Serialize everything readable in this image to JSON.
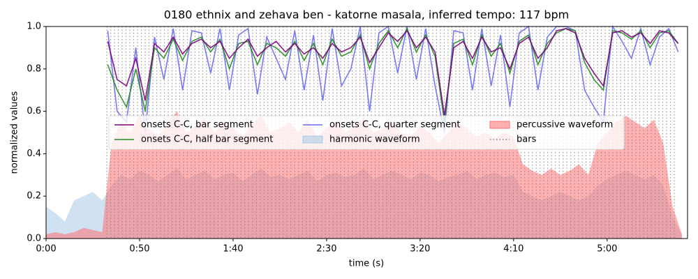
{
  "chart_data": {
    "type": "line",
    "title": "0180 ethnix and zehava ben - katorne masala, inferred tempo: 117 bpm",
    "xlabel": "time (s)",
    "ylabel": "normalized values",
    "xlim": [
      0,
      343
    ],
    "ylim": [
      0,
      1
    ],
    "xticks": [
      {
        "value": 0,
        "label": "0:00"
      },
      {
        "value": 50,
        "label": "0:50"
      },
      {
        "value": 100,
        "label": "1:40"
      },
      {
        "value": 150,
        "label": "2:30"
      },
      {
        "value": 200,
        "label": "3:20"
      },
      {
        "value": 250,
        "label": "4:10"
      },
      {
        "value": 300,
        "label": "5:00"
      }
    ],
    "yticks": [
      {
        "value": 0,
        "label": "0.0"
      },
      0.2,
      0.4,
      0.6,
      0.8,
      {
        "value": 1,
        "label": "1.0"
      }
    ],
    "legend": "center",
    "series": [
      {
        "name": "onsets C-C, bar segment",
        "style": "line",
        "color": "#800080",
        "x": [
          33,
          38,
          43,
          48,
          53,
          58,
          63,
          68,
          73,
          78,
          83,
          88,
          93,
          98,
          103,
          108,
          113,
          118,
          123,
          128,
          133,
          138,
          143,
          148,
          153,
          158,
          163,
          168,
          173,
          178,
          183,
          188,
          193,
          198,
          203,
          208,
          213,
          218,
          223,
          228,
          233,
          238,
          243,
          248,
          253,
          258,
          263,
          268,
          273,
          278,
          283,
          288,
          293,
          298,
          303,
          308,
          313,
          318,
          323,
          328,
          333,
          338
        ],
        "values": [
          0.93,
          0.75,
          0.72,
          0.85,
          0.65,
          0.92,
          0.88,
          0.95,
          0.87,
          0.92,
          0.94,
          0.9,
          0.93,
          0.85,
          0.9,
          0.94,
          0.86,
          0.9,
          0.93,
          0.88,
          0.92,
          0.87,
          0.9,
          0.85,
          0.92,
          0.88,
          0.9,
          0.95,
          0.83,
          0.9,
          0.97,
          0.93,
          0.98,
          0.9,
          0.95,
          0.88,
          0.58,
          0.9,
          0.93,
          0.85,
          0.95,
          0.88,
          0.9,
          0.8,
          0.92,
          0.95,
          0.85,
          0.9,
          0.98,
          0.99,
          0.97,
          0.85,
          0.78,
          0.72,
          0.97,
          0.98,
          0.95,
          0.97,
          0.92,
          0.98,
          0.97,
          0.92
        ]
      },
      {
        "name": "onsets C-C, half bar segment",
        "style": "line",
        "color": "#228b22",
        "x": [
          33,
          38,
          43,
          48,
          53,
          58,
          63,
          68,
          73,
          78,
          83,
          88,
          93,
          98,
          103,
          108,
          113,
          118,
          123,
          128,
          133,
          138,
          143,
          148,
          153,
          158,
          163,
          168,
          173,
          178,
          183,
          188,
          193,
          198,
          203,
          208,
          213,
          218,
          223,
          228,
          233,
          238,
          243,
          248,
          253,
          258,
          263,
          268,
          273,
          278,
          283,
          288,
          293,
          298,
          303,
          308,
          313,
          318,
          323,
          328,
          333,
          338
        ],
        "values": [
          0.82,
          0.7,
          0.62,
          0.8,
          0.6,
          0.9,
          0.85,
          0.94,
          0.84,
          0.93,
          0.95,
          0.88,
          0.94,
          0.8,
          0.92,
          0.93,
          0.82,
          0.92,
          0.9,
          0.86,
          0.93,
          0.84,
          0.92,
          0.82,
          0.94,
          0.86,
          0.88,
          0.96,
          0.8,
          0.92,
          0.98,
          0.9,
          0.99,
          0.88,
          0.96,
          0.86,
          0.55,
          0.92,
          0.94,
          0.82,
          0.96,
          0.86,
          0.92,
          0.78,
          0.93,
          0.96,
          0.82,
          0.92,
          0.97,
          0.99,
          0.98,
          0.83,
          0.75,
          0.7,
          0.98,
          0.97,
          0.94,
          0.98,
          0.9,
          0.97,
          0.98,
          0.92
        ]
      },
      {
        "name": "onsets C-C, quarter segment",
        "style": "line",
        "color": "#6a6af5",
        "x": [
          33,
          38,
          43,
          48,
          53,
          58,
          63,
          68,
          73,
          78,
          83,
          88,
          93,
          98,
          103,
          108,
          113,
          118,
          123,
          128,
          133,
          138,
          143,
          148,
          153,
          158,
          163,
          168,
          173,
          178,
          183,
          188,
          193,
          198,
          203,
          208,
          213,
          218,
          223,
          228,
          233,
          238,
          243,
          248,
          253,
          258,
          263,
          268,
          273,
          278,
          283,
          288,
          293,
          298,
          303,
          308,
          313,
          318,
          323,
          328,
          333,
          338
        ],
        "values": [
          0.98,
          0.6,
          0.55,
          0.9,
          0.5,
          0.95,
          0.75,
          0.99,
          0.7,
          0.98,
          0.97,
          0.78,
          0.99,
          0.7,
          0.96,
          0.99,
          0.68,
          0.95,
          0.85,
          0.75,
          0.98,
          0.7,
          0.96,
          0.65,
          0.99,
          0.72,
          0.8,
          1.0,
          0.6,
          0.97,
          1.0,
          0.78,
          1.0,
          0.75,
          0.99,
          0.72,
          0.5,
          0.98,
          0.97,
          0.7,
          0.99,
          0.72,
          0.96,
          0.62,
          0.97,
          1.0,
          0.7,
          0.95,
          1.0,
          1.0,
          0.98,
          0.7,
          0.62,
          0.55,
          1.0,
          0.93,
          0.85,
          0.99,
          0.82,
          0.95,
          0.99,
          0.88
        ]
      },
      {
        "name": "harmonic waveform",
        "style": "area",
        "color": "#a9cbe6",
        "x": [
          0,
          5,
          10,
          15,
          20,
          25,
          30,
          35,
          40,
          45,
          50,
          55,
          60,
          65,
          70,
          75,
          80,
          85,
          90,
          95,
          100,
          105,
          110,
          115,
          120,
          125,
          130,
          135,
          140,
          145,
          150,
          155,
          160,
          165,
          170,
          175,
          180,
          185,
          190,
          195,
          200,
          205,
          210,
          215,
          220,
          225,
          230,
          235,
          240,
          245,
          250,
          255,
          260,
          265,
          270,
          275,
          280,
          285,
          290,
          295,
          300,
          305,
          310,
          315,
          320,
          325,
          330,
          335,
          340
        ],
        "values": [
          0.15,
          0.12,
          0.08,
          0.18,
          0.2,
          0.22,
          0.18,
          0.25,
          0.3,
          0.28,
          0.32,
          0.3,
          0.27,
          0.3,
          0.33,
          0.28,
          0.3,
          0.32,
          0.28,
          0.3,
          0.31,
          0.27,
          0.3,
          0.33,
          0.29,
          0.3,
          0.28,
          0.3,
          0.32,
          0.27,
          0.3,
          0.31,
          0.29,
          0.3,
          0.33,
          0.28,
          0.3,
          0.32,
          0.3,
          0.28,
          0.31,
          0.3,
          0.27,
          0.29,
          0.3,
          0.32,
          0.28,
          0.3,
          0.31,
          0.29,
          0.3,
          0.22,
          0.2,
          0.18,
          0.2,
          0.22,
          0.2,
          0.18,
          0.2,
          0.25,
          0.28,
          0.3,
          0.32,
          0.3,
          0.28,
          0.3,
          0.25,
          0.1,
          0.02
        ]
      },
      {
        "name": "percussive waveform",
        "style": "area",
        "color": "#ff7070",
        "x": [
          0,
          5,
          10,
          15,
          20,
          25,
          30,
          35,
          40,
          45,
          50,
          55,
          60,
          65,
          70,
          75,
          80,
          85,
          90,
          95,
          100,
          105,
          110,
          115,
          120,
          125,
          130,
          135,
          140,
          145,
          150,
          155,
          160,
          165,
          170,
          175,
          180,
          185,
          190,
          195,
          200,
          205,
          210,
          215,
          220,
          225,
          230,
          235,
          240,
          245,
          250,
          255,
          260,
          265,
          270,
          275,
          280,
          285,
          290,
          295,
          300,
          305,
          310,
          315,
          320,
          325,
          330,
          335,
          340
        ],
        "values": [
          0.02,
          0.03,
          0.02,
          0.03,
          0.05,
          0.04,
          0.03,
          0.45,
          0.55,
          0.5,
          0.58,
          0.52,
          0.48,
          0.55,
          0.6,
          0.5,
          0.53,
          0.57,
          0.5,
          0.55,
          0.52,
          0.48,
          0.54,
          0.58,
          0.5,
          0.52,
          0.55,
          0.5,
          0.56,
          0.48,
          0.52,
          0.55,
          0.5,
          0.53,
          0.57,
          0.5,
          0.52,
          0.55,
          0.5,
          0.48,
          0.53,
          0.5,
          0.45,
          0.5,
          0.55,
          0.52,
          0.48,
          0.5,
          0.47,
          0.5,
          0.48,
          0.35,
          0.32,
          0.3,
          0.33,
          0.3,
          0.32,
          0.35,
          0.3,
          0.45,
          0.5,
          0.55,
          0.58,
          0.55,
          0.52,
          0.56,
          0.45,
          0.15,
          0.02
        ]
      },
      {
        "name": "bars",
        "style": "vlines",
        "color": "#808080",
        "x": [
          32.5,
          34.55,
          36.6,
          38.65,
          40.7,
          42.75,
          44.8,
          46.85,
          48.9,
          50.95,
          53,
          55.05,
          57.1,
          59.15,
          61.2,
          63.25,
          65.3,
          67.35,
          69.4,
          71.45,
          73.5,
          75.55,
          77.6,
          79.65,
          81.7,
          83.75,
          85.8,
          87.85,
          89.9,
          91.95,
          94,
          96.05,
          98.1,
          100.15,
          102.2,
          104.25,
          106.3,
          108.35,
          110.4,
          112.45,
          114.5,
          116.55,
          118.6,
          120.65,
          122.7,
          124.75,
          126.8,
          128.85,
          130.9,
          132.95,
          135,
          137.05,
          139.1,
          141.15,
          143.2,
          145.25,
          147.3,
          149.35,
          151.4,
          153.45,
          155.5,
          157.55,
          159.6,
          161.65,
          163.7,
          165.75,
          167.8,
          169.85,
          171.9,
          173.95,
          176,
          178.05,
          180.1,
          182.15,
          184.2,
          186.25,
          188.3,
          190.35,
          192.4,
          194.45,
          196.5,
          198.55,
          200.6,
          202.65,
          204.7,
          206.75,
          208.8,
          210.85,
          212.9,
          214.95,
          217,
          219.05,
          221.1,
          223.15,
          225.2,
          227.25,
          229.3,
          231.35,
          233.4,
          235.45,
          237.5,
          239.55,
          241.6,
          243.65,
          245.7,
          247.75,
          249.8,
          251.85,
          253.9,
          255.95,
          258,
          260.05,
          262.1,
          264.15,
          266.2,
          268.25,
          270.3,
          272.35,
          274.4,
          276.45,
          278.5,
          280.55,
          282.6,
          284.65,
          286.7,
          288.75,
          290.8,
          292.85,
          294.9,
          296.95,
          299,
          301.05,
          303.1,
          305.15,
          307.2,
          309.25,
          311.3,
          313.35,
          315.4,
          317.45,
          319.5,
          321.55,
          323.6,
          325.65,
          327.7,
          329.75,
          331.8,
          333.85,
          335.9
        ]
      }
    ]
  }
}
